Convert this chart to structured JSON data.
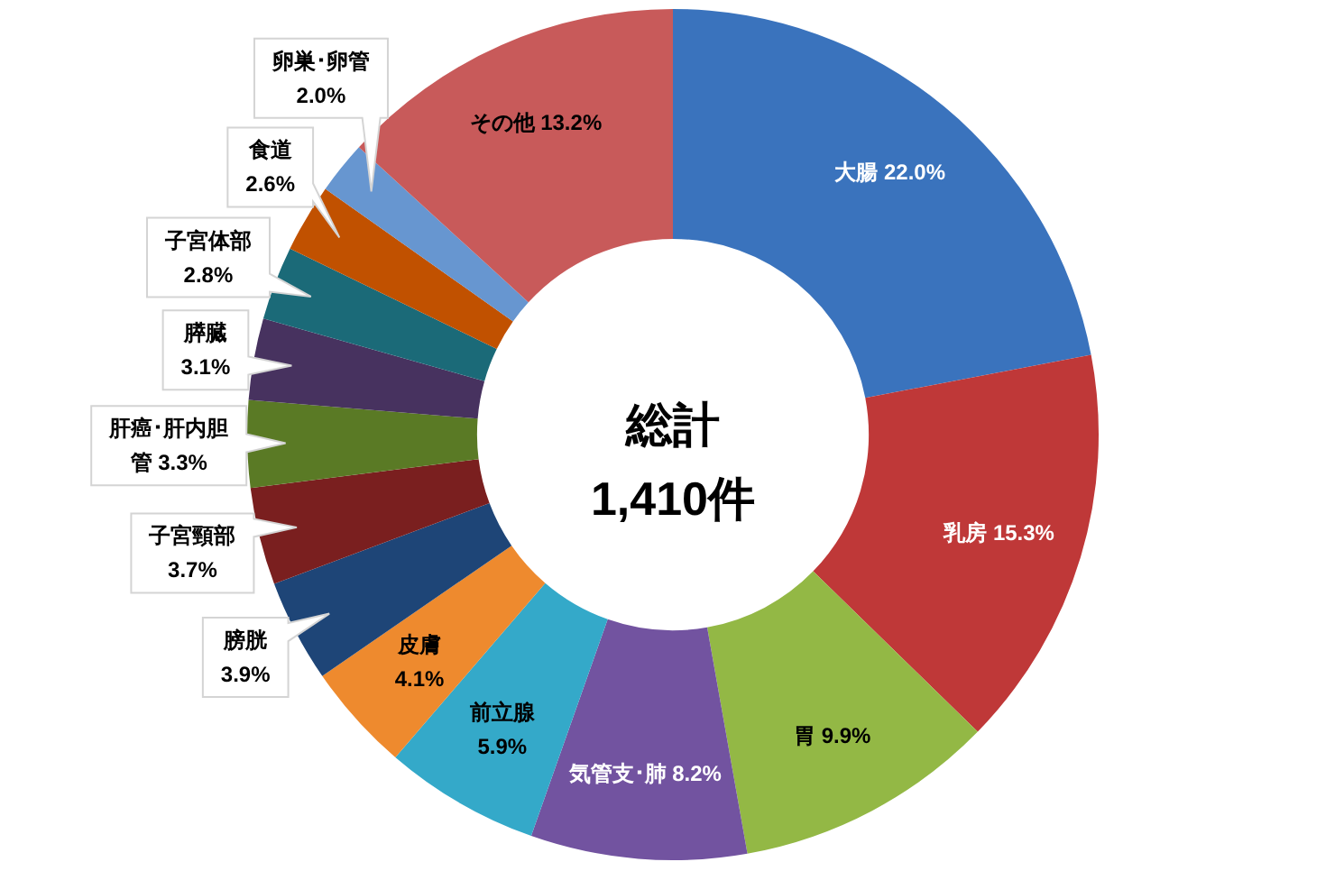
{
  "chart_data": {
    "type": "donut",
    "categories": [
      "大腸",
      "乳房",
      "胃",
      "気管支･肺",
      "前立腺",
      "皮膚",
      "膀胱",
      "子宮頸部",
      "肝癌･肝内胆管",
      "膵臓",
      "子宮体部",
      "食道",
      "卵巣･卵管",
      "その他"
    ],
    "values": [
      22.0,
      15.3,
      9.9,
      8.2,
      5.9,
      4.1,
      3.9,
      3.7,
      3.3,
      3.1,
      2.8,
      2.6,
      2.0,
      13.2
    ],
    "value_labels": [
      "22.0%",
      "15.3%",
      "9.9%",
      "8.2%",
      "5.9%",
      "4.1%",
      "3.9%",
      "3.7%",
      "3.3%",
      "3.1%",
      "2.8%",
      "2.6%",
      "2.0%",
      "13.2%"
    ],
    "colors": [
      "#3a73bd",
      "#bf3838",
      "#93b845",
      "#7253a0",
      "#34a9c9",
      "#ee8a2e",
      "#1e4577",
      "#7a1f1f",
      "#5a7a25",
      "#47325f",
      "#1b6a78",
      "#c15100",
      "#6796d0",
      "#c85a5a"
    ],
    "annotations": [
      "総計",
      "1,410件"
    ]
  }
}
